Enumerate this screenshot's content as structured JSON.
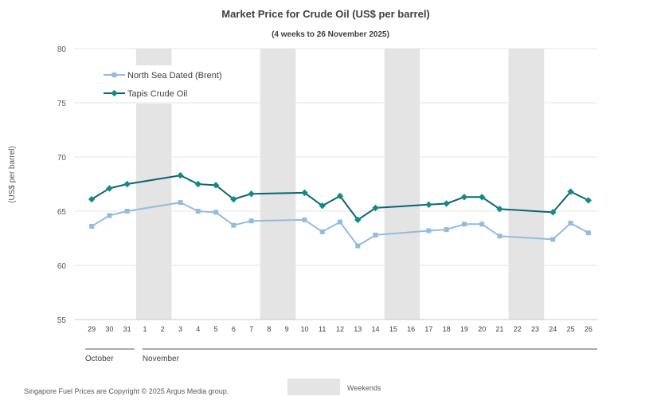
{
  "chart_data": {
    "type": "line",
    "title": "Market Price for Crude  Oil (US$ per barrel)",
    "subtitle": "(4 weeks to 26 November 2025)",
    "ylabel": "(US$ per barrel)",
    "xlabel": "",
    "ylim": [
      55,
      80
    ],
    "yticks": [
      55,
      60,
      65,
      70,
      75,
      80
    ],
    "categories": [
      "29",
      "30",
      "31",
      "1",
      "2",
      "3",
      "4",
      "5",
      "6",
      "7",
      "8",
      "9",
      "10",
      "11",
      "12",
      "13",
      "14",
      "15",
      "16",
      "17",
      "18",
      "19",
      "20",
      "21",
      "22",
      "23",
      "24",
      "25",
      "26"
    ],
    "month_groups": [
      {
        "label": "October",
        "from": "29",
        "to": "31"
      },
      {
        "label": "November",
        "from": "1",
        "to": "26"
      }
    ],
    "weekend_spans": [
      [
        "1",
        "2"
      ],
      [
        "8",
        "9"
      ],
      [
        "15",
        "16"
      ],
      [
        "22",
        "23"
      ]
    ],
    "series": [
      {
        "name": "North Sea Dated (Brent)",
        "color": "#92bcdf",
        "marker": "square",
        "values": [
          63.6,
          64.6,
          65.0,
          null,
          null,
          65.8,
          65.0,
          64.9,
          63.7,
          64.1,
          null,
          null,
          64.2,
          63.1,
          64.0,
          61.8,
          62.8,
          null,
          null,
          63.2,
          63.3,
          63.8,
          63.8,
          62.7,
          null,
          null,
          62.4,
          63.9,
          63.0
        ]
      },
      {
        "name": "Tapis Crude Oil",
        "color": "#0b6477",
        "marker_color": "#138a88",
        "marker": "diamond",
        "values": [
          66.1,
          67.1,
          67.5,
          null,
          null,
          68.3,
          67.5,
          67.4,
          66.1,
          66.6,
          null,
          null,
          66.7,
          65.5,
          66.4,
          64.2,
          65.3,
          null,
          null,
          65.6,
          65.7,
          66.3,
          66.3,
          65.2,
          null,
          null,
          64.9,
          66.8,
          66.0
        ]
      }
    ],
    "legend": {
      "position": "top-left"
    },
    "weekend_legend_label": "Weekends",
    "weekend_color": "#e4e4e4",
    "grid": true
  },
  "footer": {
    "copyright": "Singapore  Fuel Prices are  Copyright © 2025 Argus Media  group."
  }
}
